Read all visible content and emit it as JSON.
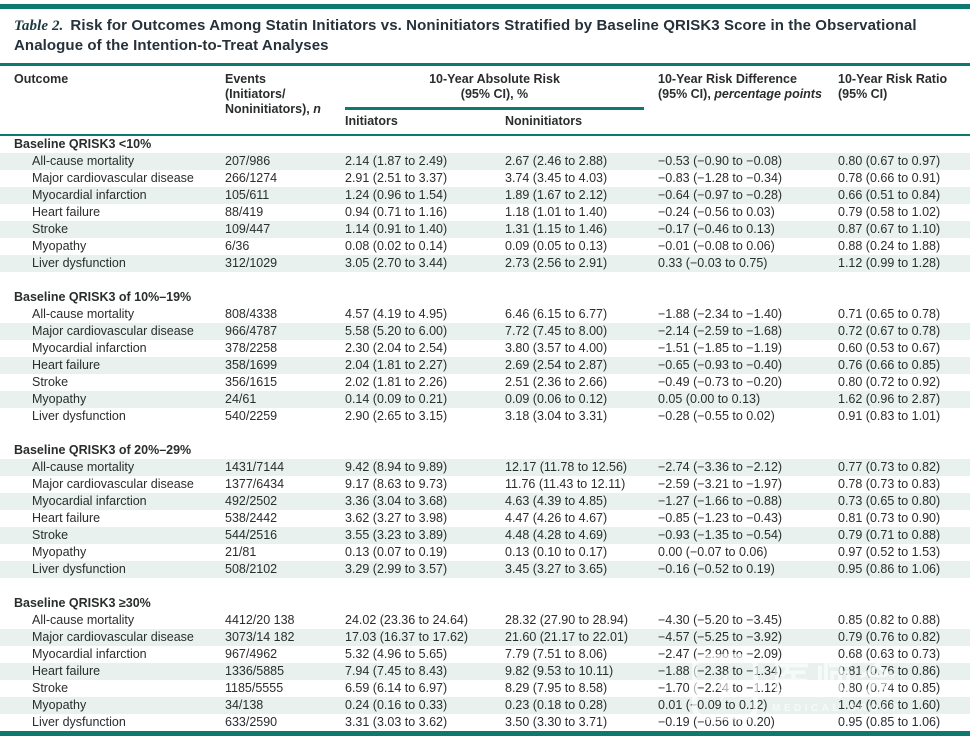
{
  "colors": {
    "teal": "#0e7a6f",
    "stripe": "#e8f1ee",
    "text": "#2a2d2e",
    "title_label": "#1d3a44"
  },
  "title": {
    "label": "Table 2.",
    "line1": "Risk for Outcomes Among Statin Initiators vs. Noninitiators Stratified by Baseline QRISK3 Score in the Observational",
    "line2": "Analogue of the Intention-to-Treat Analyses"
  },
  "header": {
    "outcome": "Outcome",
    "events_line1": "Events",
    "events_line2": "(Initiators/",
    "events_line3": "Noninitiators), ",
    "events_n": "n",
    "abs_line1": "10-Year Absolute Risk",
    "abs_line2": "(95% CI), %",
    "sub_initiators": "Initiators",
    "sub_noninitiators": "Noninitiators",
    "diff_plain": "10-Year Risk Difference (95% CI), ",
    "diff_italic": "percentage points",
    "ratio": "10-Year Risk Ratio (95% CI)"
  },
  "sections": [
    {
      "label": "Baseline QRISK3 <10%",
      "rows": [
        {
          "outcome": "All-cause mortality",
          "events": "207/986",
          "initiators": "2.14 (1.87 to 2.49)",
          "noninitiators": "2.67 (2.46 to 2.88)",
          "diff": "−0.53 (−0.90 to −0.08)",
          "ratio": "0.80 (0.67 to 0.97)"
        },
        {
          "outcome": "Major cardiovascular disease",
          "events": "266/1274",
          "initiators": "2.91 (2.51 to 3.37)",
          "noninitiators": "3.74 (3.45 to 4.03)",
          "diff": "−0.83 (−1.28 to −0.34)",
          "ratio": "0.78 (0.66 to 0.91)"
        },
        {
          "outcome": "Myocardial infarction",
          "events": "105/611",
          "initiators": "1.24 (0.96 to 1.54)",
          "noninitiators": "1.89 (1.67 to 2.12)",
          "diff": "−0.64 (−0.97 to −0.28)",
          "ratio": "0.66 (0.51 to 0.84)"
        },
        {
          "outcome": "Heart failure",
          "events": "88/419",
          "initiators": "0.94 (0.71 to 1.16)",
          "noninitiators": "1.18 (1.01 to 1.40)",
          "diff": "−0.24 (−0.56 to 0.03)",
          "ratio": "0.79 (0.58 to 1.02)"
        },
        {
          "outcome": "Stroke",
          "events": "109/447",
          "initiators": "1.14 (0.91 to 1.40)",
          "noninitiators": "1.31 (1.15 to 1.46)",
          "diff": "−0.17 (−0.46 to 0.13)",
          "ratio": "0.87 (0.67 to 1.10)"
        },
        {
          "outcome": "Myopathy",
          "events": "6/36",
          "initiators": "0.08 (0.02 to 0.14)",
          "noninitiators": "0.09 (0.05 to 0.13)",
          "diff": "−0.01 (−0.08 to 0.06)",
          "ratio": "0.88 (0.24 to 1.88)"
        },
        {
          "outcome": "Liver dysfunction",
          "events": "312/1029",
          "initiators": "3.05 (2.70 to 3.44)",
          "noninitiators": "2.73 (2.56 to 2.91)",
          "diff": "0.33 (−0.03 to 0.75)",
          "ratio": "1.12 (0.99 to 1.28)"
        }
      ]
    },
    {
      "label": "Baseline QRISK3 of 10%–19%",
      "rows": [
        {
          "outcome": "All-cause mortality",
          "events": "808/4338",
          "initiators": "4.57 (4.19 to 4.95)",
          "noninitiators": "6.46 (6.15 to 6.77)",
          "diff": "−1.88 (−2.34 to −1.40)",
          "ratio": "0.71 (0.65 to 0.78)"
        },
        {
          "outcome": "Major cardiovascular disease",
          "events": "966/4787",
          "initiators": "5.58 (5.20 to 6.00)",
          "noninitiators": "7.72 (7.45 to 8.00)",
          "diff": "−2.14 (−2.59 to −1.68)",
          "ratio": "0.72 (0.67 to 0.78)"
        },
        {
          "outcome": "Myocardial infarction",
          "events": "378/2258",
          "initiators": "2.30 (2.04 to 2.54)",
          "noninitiators": "3.80 (3.57 to 4.00)",
          "diff": "−1.51 (−1.85 to −1.19)",
          "ratio": "0.60 (0.53 to 0.67)"
        },
        {
          "outcome": "Heart failure",
          "events": "358/1699",
          "initiators": "2.04 (1.81 to 2.27)",
          "noninitiators": "2.69 (2.54 to 2.87)",
          "diff": "−0.65 (−0.93 to −0.40)",
          "ratio": "0.76 (0.66 to 0.85)"
        },
        {
          "outcome": "Stroke",
          "events": "356/1615",
          "initiators": "2.02 (1.81 to 2.26)",
          "noninitiators": "2.51 (2.36 to 2.66)",
          "diff": "−0.49 (−0.73 to −0.20)",
          "ratio": "0.80 (0.72 to 0.92)"
        },
        {
          "outcome": "Myopathy",
          "events": "24/61",
          "initiators": "0.14 (0.09 to 0.21)",
          "noninitiators": "0.09 (0.06 to 0.12)",
          "diff": "0.05 (0.00 to 0.13)",
          "ratio": "1.62 (0.96 to 2.87)"
        },
        {
          "outcome": "Liver dysfunction",
          "events": "540/2259",
          "initiators": "2.90 (2.65 to 3.15)",
          "noninitiators": "3.18 (3.04 to 3.31)",
          "diff": "−0.28 (−0.55 to 0.02)",
          "ratio": "0.91 (0.83 to 1.01)"
        }
      ]
    },
    {
      "label": "Baseline QRISK3 of 20%–29%",
      "rows": [
        {
          "outcome": "All-cause mortality",
          "events": "1431/7144",
          "initiators": "9.42 (8.94 to 9.89)",
          "noninitiators": "12.17 (11.78 to 12.56)",
          "diff": "−2.74 (−3.36 to −2.12)",
          "ratio": "0.77 (0.73 to 0.82)"
        },
        {
          "outcome": "Major cardiovascular disease",
          "events": "1377/6434",
          "initiators": "9.17 (8.63 to 9.73)",
          "noninitiators": "11.76 (11.43 to 12.11)",
          "diff": "−2.59 (−3.21 to −1.97)",
          "ratio": "0.78 (0.73 to 0.83)"
        },
        {
          "outcome": "Myocardial infarction",
          "events": "492/2502",
          "initiators": "3.36 (3.04 to 3.68)",
          "noninitiators": "4.63 (4.39 to 4.85)",
          "diff": "−1.27 (−1.66 to −0.88)",
          "ratio": "0.73 (0.65 to 0.80)"
        },
        {
          "outcome": "Heart failure",
          "events": "538/2442",
          "initiators": "3.62 (3.27 to 3.98)",
          "noninitiators": "4.47 (4.26 to 4.67)",
          "diff": "−0.85 (−1.23 to −0.43)",
          "ratio": "0.81 (0.73 to 0.90)"
        },
        {
          "outcome": "Stroke",
          "events": "544/2516",
          "initiators": "3.55 (3.23 to 3.89)",
          "noninitiators": "4.48 (4.28 to 4.69)",
          "diff": "−0.93 (−1.35 to −0.54)",
          "ratio": "0.79 (0.71 to 0.88)"
        },
        {
          "outcome": "Myopathy",
          "events": "21/81",
          "initiators": "0.13 (0.07 to 0.19)",
          "noninitiators": "0.13 (0.10 to 0.17)",
          "diff": "0.00 (−0.07 to 0.06)",
          "ratio": "0.97 (0.52 to 1.53)"
        },
        {
          "outcome": "Liver dysfunction",
          "events": "508/2102",
          "initiators": "3.29 (2.99 to 3.57)",
          "noninitiators": "3.45 (3.27 to 3.65)",
          "diff": "−0.16 (−0.52 to 0.19)",
          "ratio": "0.95 (0.86 to 1.06)"
        }
      ]
    },
    {
      "label": "Baseline QRISK3 ≥30%",
      "rows": [
        {
          "outcome": "All-cause mortality",
          "events": "4412/20 138",
          "initiators": "24.02 (23.36 to 24.64)",
          "noninitiators": "28.32 (27.90 to 28.94)",
          "diff": "−4.30 (−5.20 to −3.45)",
          "ratio": "0.85 (0.82 to 0.88)"
        },
        {
          "outcome": "Major cardiovascular disease",
          "events": "3073/14 182",
          "initiators": "17.03 (16.37 to 17.62)",
          "noninitiators": "21.60 (21.17 to 22.01)",
          "diff": "−4.57 (−5.25 to −3.92)",
          "ratio": "0.79 (0.76 to 0.82)"
        },
        {
          "outcome": "Myocardial infarction",
          "events": "967/4962",
          "initiators": "5.32 (4.96 to 5.65)",
          "noninitiators": "7.79 (7.51 to 8.06)",
          "diff": "−2.47 (−2.90 to −2.09)",
          "ratio": "0.68 (0.63 to 0.73)"
        },
        {
          "outcome": "Heart failure",
          "events": "1336/5885",
          "initiators": "7.94 (7.45 to 8.43)",
          "noninitiators": "9.82 (9.53 to 10.11)",
          "diff": "−1.88 (−2.38 to −1.34)",
          "ratio": "0.81 (0.76 to 0.86)"
        },
        {
          "outcome": "Stroke",
          "events": "1185/5555",
          "initiators": "6.59 (6.14 to 6.97)",
          "noninitiators": "8.29 (7.95 to 8.58)",
          "diff": "−1.70 (−2.24 to −1.12)",
          "ratio": "0.80 (0.74 to 0.85)"
        },
        {
          "outcome": "Myopathy",
          "events": "34/138",
          "initiators": "0.24 (0.16 to 0.33)",
          "noninitiators": "0.23 (0.18 to 0.28)",
          "diff": "0.01 (−0.09 to 0.12)",
          "ratio": "1.04 (0.66 to 1.60)"
        },
        {
          "outcome": "Liver dysfunction",
          "events": "633/2590",
          "initiators": "3.31 (3.03 to 3.62)",
          "noninitiators": "3.50 (3.30 to 3.71)",
          "diff": "−0.19 (−0.56 to 0.20)",
          "ratio": "0.95 (0.85 to 1.06)"
        }
      ]
    }
  ],
  "watermark": {
    "cjk": "医师会",
    "sub": "MEDICAL GROUP"
  }
}
